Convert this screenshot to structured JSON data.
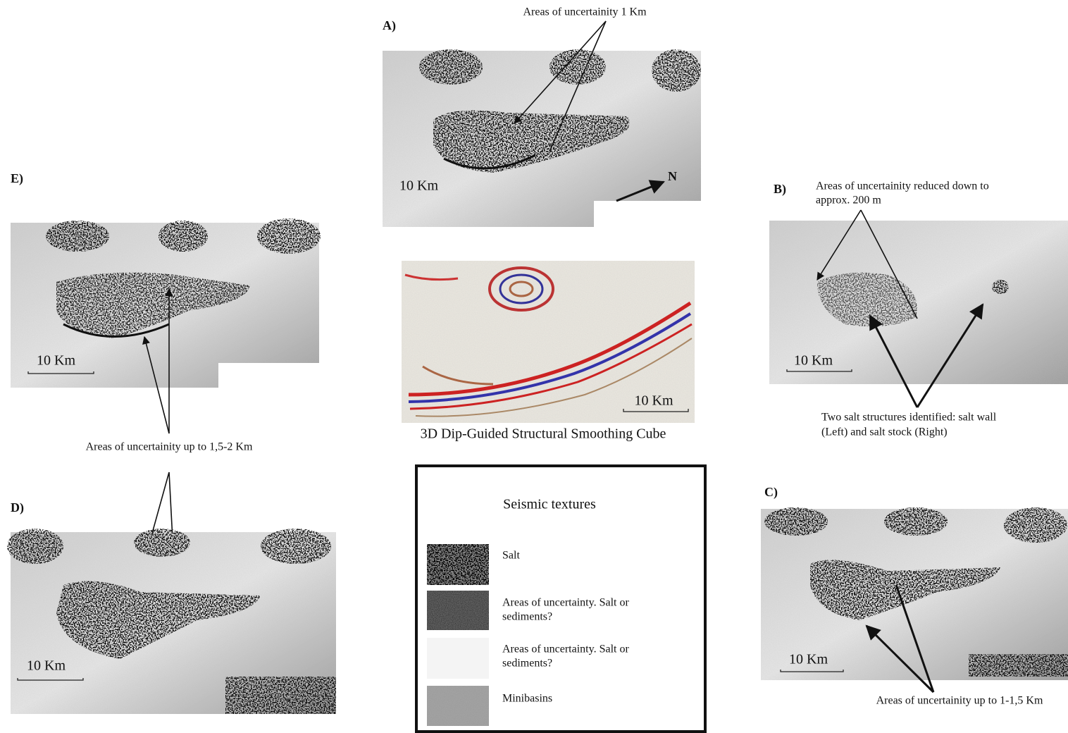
{
  "panel_a": {
    "label": "A)",
    "annotation": "Areas of uncertainity 1 Km",
    "scale": "10 Km",
    "north": "N"
  },
  "panel_e": {
    "label": "E)",
    "scale": "10 Km"
  },
  "panel_d": {
    "label": "D)",
    "scale": "10 Km"
  },
  "shared_annotation": "Areas of uncertainity  up to 1,5-2 Km",
  "panel_b": {
    "label": "B)",
    "annotation": [
      "Areas of uncertainity reduced down to",
      "approx. 200 m"
    ],
    "scale": "10 Km",
    "caption": [
      "Two salt structures identified: salt wall",
      "(Left) and salt stock (Right)"
    ]
  },
  "panel_c": {
    "label": "C)",
    "scale": "10 Km",
    "annotation": "Areas of uncertainity  up to 1-1,5 Km"
  },
  "seismic": {
    "scale": "10 Km",
    "caption": "3D Dip-Guided Structural Smoothing Cube"
  },
  "legend": {
    "title": "Seismic textures",
    "items": [
      "Salt",
      [
        "Areas of uncertainty. Salt or",
        "sediments?"
      ],
      [
        "Areas of uncertainty. Salt or",
        "sediments?"
      ],
      "Minibasins"
    ]
  }
}
